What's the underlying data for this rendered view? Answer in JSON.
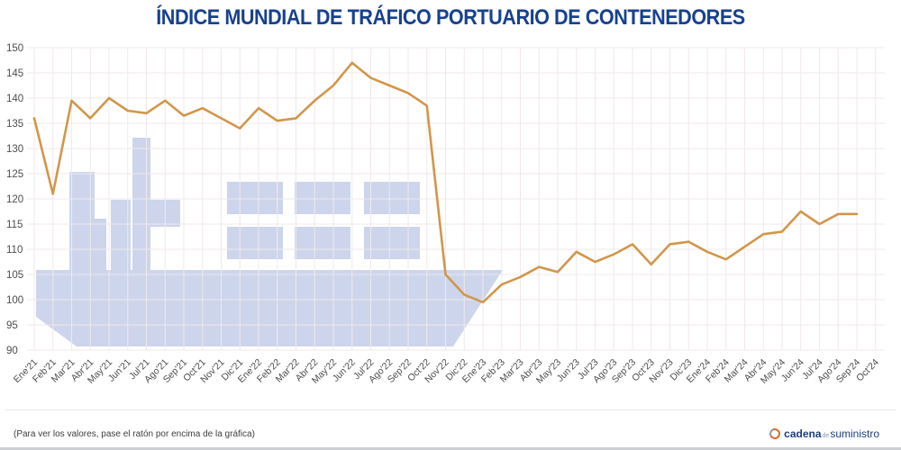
{
  "title": "ÍNDICE MUNDIAL DE TRÁFICO PORTUARIO DE CONTENEDORES",
  "footer": {
    "hint": "(Para ver los valores, pase el ratón por encima de la gráfica)",
    "brand_part1": "cadena",
    "brand_part2": "de",
    "brand_part3": "suministro"
  },
  "colors": {
    "title": "#17418f",
    "line": "#d2964a",
    "watermark": "#ccd5ec",
    "grid": "#f2e8e8",
    "axis_text": "#4d4d4d",
    "brand_blue": "#1c3e7e",
    "brand_orange": "#e0662c"
  },
  "chart_data": {
    "type": "line",
    "title": "ÍNDICE MUNDIAL DE TRÁFICO PORTUARIO DE CONTENEDORES",
    "xlabel": "",
    "ylabel": "",
    "ylim": [
      90,
      150
    ],
    "ytick_step": 5,
    "yticks": [
      90,
      95,
      100,
      105,
      110,
      115,
      120,
      125,
      130,
      135,
      140,
      145,
      150
    ],
    "grid": true,
    "legend": false,
    "x_label_rotation": -45,
    "watermark": "container-ship silhouette",
    "categories": [
      "Ene'21",
      "Feb'21",
      "Mar'21",
      "Abr'21",
      "May'21",
      "Jun'21",
      "Jul'21",
      "Ago'21",
      "Sep'21",
      "Oct'21",
      "Nov'21",
      "Dic'21",
      "Ene'22",
      "Feb'22",
      "Mar'22",
      "Abr'22",
      "May'22",
      "Jun'22",
      "Jul'22",
      "Ago'22",
      "Sep'22",
      "Oct'22",
      "Nov'22",
      "Dic'22",
      "Ene'23",
      "Feb'23",
      "Mar'23",
      "Abr'23",
      "May'23",
      "Jun'23",
      "Jul'23",
      "Ago'23",
      "Sep'23",
      "Oct'23",
      "Nov'23",
      "Dic'23",
      "Ene'24",
      "Feb'24",
      "Mar'24",
      "Abr'24",
      "May'24",
      "Jun'24",
      "Jul'24",
      "Ago'24",
      "Sep'24",
      "Oct'24"
    ],
    "series": [
      {
        "name": "Índice mundial de tráfico portuario de contenedores",
        "values": [
          136,
          121,
          139.5,
          136,
          140,
          137.5,
          137,
          139.5,
          136.5,
          138,
          136,
          134,
          138,
          135.5,
          136,
          139.5,
          142.5,
          147,
          144,
          142.5,
          141,
          138.5,
          105,
          101,
          99.5,
          103,
          104.5,
          106.5,
          105.5,
          109.5,
          107.5,
          109,
          111,
          107,
          111,
          111.5,
          109.5,
          108,
          110.5,
          113,
          113.5,
          117.5,
          115,
          117,
          117,
          null
        ]
      }
    ]
  }
}
